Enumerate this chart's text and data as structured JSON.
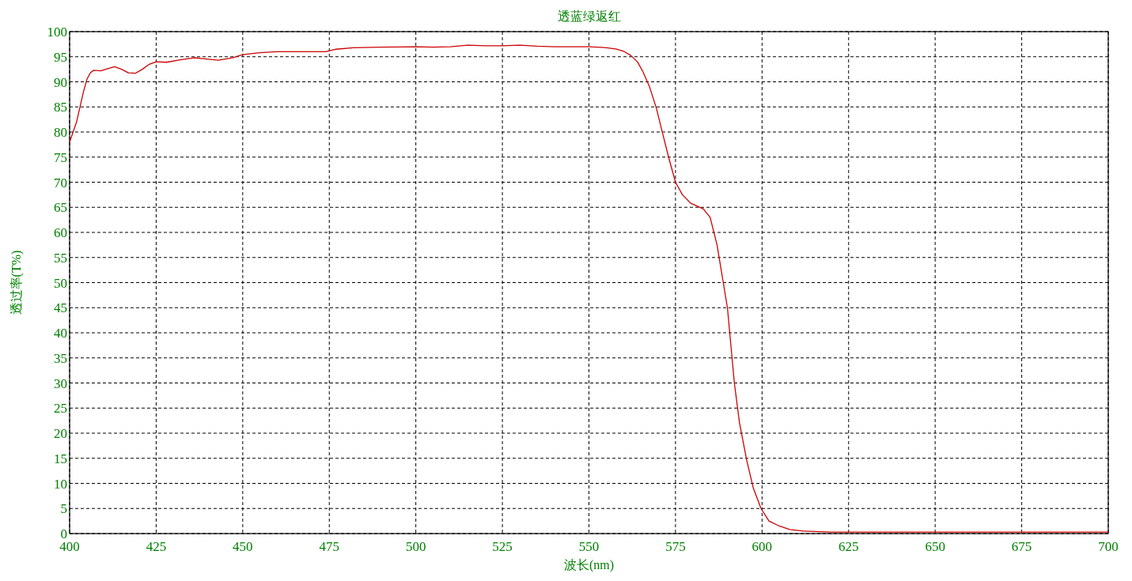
{
  "chart_data": {
    "type": "line",
    "title": "透蓝绿返红",
    "xlabel": "波长(nm)",
    "ylabel": "透过率(T%)",
    "xlim": [
      400,
      700
    ],
    "ylim": [
      0,
      100
    ],
    "xticks": [
      400,
      425,
      450,
      475,
      500,
      525,
      550,
      575,
      600,
      625,
      650,
      675,
      700
    ],
    "yticks": [
      0,
      5,
      10,
      15,
      20,
      25,
      30,
      35,
      40,
      45,
      50,
      55,
      60,
      65,
      70,
      75,
      80,
      85,
      90,
      95,
      100
    ],
    "grid": true,
    "x": [
      400,
      402,
      404,
      405,
      406,
      407,
      409,
      411,
      413,
      415,
      417,
      419,
      421,
      423,
      425,
      428,
      432,
      436,
      440,
      443,
      447,
      450,
      455,
      460,
      465,
      470,
      474,
      477,
      482,
      490,
      500,
      505,
      510,
      515,
      520,
      525,
      530,
      535,
      540,
      545,
      550,
      555,
      558,
      560,
      562,
      564,
      565.6,
      567.5,
      569.5,
      571,
      573,
      575,
      577,
      579.4,
      583,
      585,
      587,
      590,
      592,
      593.5,
      595.6,
      597.5,
      599.7,
      602,
      605,
      608,
      612,
      620,
      650,
      700
    ],
    "series": [
      {
        "color": "#cc0000",
        "values": [
          78,
          82,
          88,
          90.5,
          91.8,
          92.3,
          92.2,
          92.6,
          93.0,
          92.5,
          91.8,
          91.7,
          92.5,
          93.5,
          94.0,
          93.9,
          94.4,
          94.8,
          94.5,
          94.3,
          94.8,
          95.4,
          95.8,
          96.0,
          96.0,
          96.0,
          96.0,
          96.5,
          96.8,
          96.9,
          97.0,
          96.9,
          97.0,
          97.3,
          97.2,
          97.2,
          97.3,
          97.1,
          97.0,
          97.0,
          97.0,
          96.8,
          96.5,
          96.1,
          95.3,
          94.0,
          92,
          89,
          84.7,
          80.5,
          75,
          70,
          67.5,
          65.8,
          64.7,
          63,
          57.5,
          45,
          30,
          22,
          14.5,
          9,
          5,
          2.5,
          1.5,
          0.8,
          0.5,
          0.3,
          0.3,
          0.3
        ]
      }
    ]
  }
}
